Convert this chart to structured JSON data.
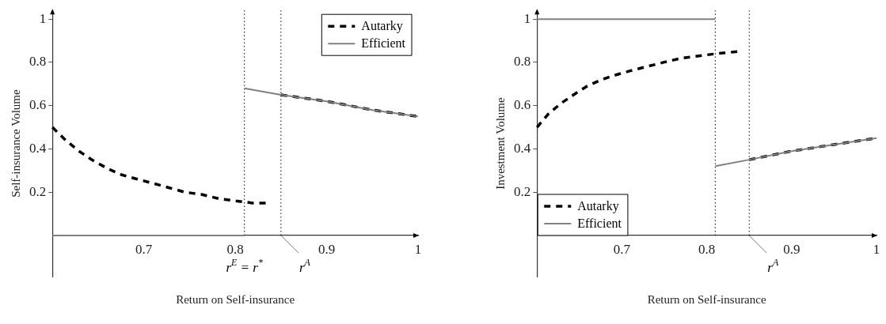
{
  "chart_data": [
    {
      "type": "line",
      "xlabel": "Return on Self-insurance",
      "ylabel": "Self-insurance Volume",
      "xlim": [
        0.6,
        1.0
      ],
      "ylim": [
        -0.19,
        1.04
      ],
      "xticks": [
        0.7,
        0.8,
        0.9,
        1
      ],
      "yticks": [
        0.2,
        0.4,
        0.6,
        0.8,
        1
      ],
      "legend": "top right",
      "series": [
        {
          "name": "Autarky",
          "color": "#000000",
          "line_style": "dashed",
          "x": [
            0.6,
            0.6145,
            0.629,
            0.643,
            0.66,
            0.676,
            0.693,
            0.711,
            0.728,
            0.745,
            0.763,
            0.782,
            0.8,
            0.819,
            0.838,
            null,
            0.85,
            0.9,
            0.95,
            1.0
          ],
          "values": [
            0.5,
            0.44,
            0.39,
            0.35,
            0.31,
            0.28,
            0.26,
            0.24,
            0.22,
            0.2,
            0.19,
            0.17,
            0.16,
            0.15,
            0.15,
            null,
            0.65,
            0.62,
            0.58,
            0.55
          ]
        },
        {
          "name": "Efficient",
          "color": "#808080",
          "line_style": "solid",
          "x": [
            0.6,
            0.81,
            null,
            0.81,
            0.85,
            0.9,
            0.95,
            1.0
          ],
          "values": [
            0,
            0,
            null,
            0.68,
            0.65,
            0.62,
            0.58,
            0.55
          ]
        }
      ],
      "ref_lines": [
        {
          "axis": "x",
          "value": 0.81,
          "label": "r$^{E}$ = r$^{*}$",
          "line_style": "dotted"
        },
        {
          "axis": "x",
          "value": 0.85,
          "label": "r$^{A}$",
          "line_style": "dotted"
        }
      ]
    },
    {
      "type": "line",
      "xlabel": "Return on Self-insurance",
      "ylabel": "Investment Volume",
      "xlim": [
        0.6,
        1.0
      ],
      "ylim": [
        -0.19,
        1.04
      ],
      "xticks": [
        0.7,
        0.8,
        0.9,
        1
      ],
      "yticks": [
        0.2,
        0.4,
        0.6,
        0.8,
        1
      ],
      "legend": "bottom left",
      "series": [
        {
          "name": "Autarky",
          "color": "#000000",
          "line_style": "dashed",
          "x": [
            0.6,
            0.613,
            0.628,
            0.643,
            0.659,
            0.676,
            0.691,
            0.709,
            0.729,
            0.749,
            0.771,
            0.791,
            0.811,
            0.837,
            null,
            0.85,
            0.9,
            0.95,
            1.0
          ],
          "values": [
            0.5,
            0.56,
            0.61,
            0.65,
            0.69,
            0.72,
            0.74,
            0.76,
            0.78,
            0.8,
            0.82,
            0.83,
            0.84,
            0.85,
            null,
            0.35,
            0.39,
            0.42,
            0.45
          ]
        },
        {
          "name": "Efficient",
          "color": "#808080",
          "line_style": "solid",
          "x": [
            0.6,
            0.81,
            null,
            0.81,
            0.85,
            0.9,
            0.95,
            1.0
          ],
          "values": [
            1,
            1,
            null,
            0.32,
            0.35,
            0.39,
            0.42,
            0.45
          ]
        }
      ],
      "ref_lines": [
        {
          "axis": "x",
          "value": 0.81,
          "line_style": "dotted"
        },
        {
          "axis": "x",
          "value": 0.85,
          "label": "r$^{A}$",
          "line_style": "dotted"
        }
      ]
    }
  ]
}
